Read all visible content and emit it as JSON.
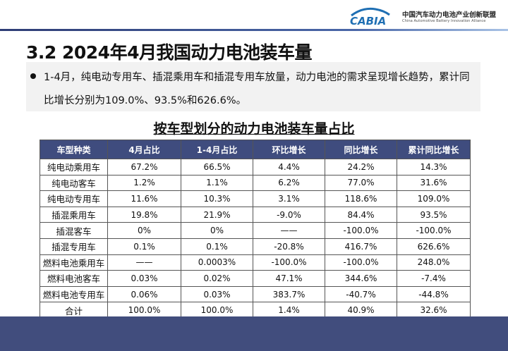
{
  "header": {
    "logo_text": "CABIA",
    "org_name_cn": "中国汽车动力电池产业创新联盟",
    "org_name_en": "China Automotive Battery Innovation Alliance"
  },
  "title": "3.2 2024年4月我国动力电池装车量",
  "bullet": "1-4月，纯电动专用车、插混乘用车和插混专用车放量，动力电池的需求呈现增长趋势，累计同比增长分别为109.0%、93.5%和626.6%。",
  "table": {
    "title": "按车型划分的动力电池装车量占比",
    "headers": [
      "车型种类",
      "4月占比",
      "1-4月占比",
      "环比增长",
      "同比增长",
      "累计同比增长"
    ],
    "rows": [
      [
        "纯电动乘用车",
        "67.2%",
        "66.5%",
        "4.4%",
        "24.2%",
        "14.3%"
      ],
      [
        "纯电动客车",
        "1.2%",
        "1.1%",
        "6.2%",
        "77.0%",
        "31.6%"
      ],
      [
        "纯电动专用车",
        "11.6%",
        "10.3%",
        "3.1%",
        "118.6%",
        "109.0%"
      ],
      [
        "插混乘用车",
        "19.8%",
        "21.9%",
        "-9.0%",
        "84.4%",
        "93.5%"
      ],
      [
        "插混客车",
        "0%",
        "0%",
        "——",
        "-100.0%",
        "-100.0%"
      ],
      [
        "插混专用车",
        "0.1%",
        "0.1%",
        "-20.8%",
        "416.7%",
        "626.6%"
      ],
      [
        "燃料电池乘用车",
        "——",
        "0.0003%",
        "-100.0%",
        "-100.0%",
        "248.0%"
      ],
      [
        "燃料电池客车",
        "0.03%",
        "0.02%",
        "47.1%",
        "344.6%",
        "-7.4%"
      ],
      [
        "燃料电池专用车",
        "0.06%",
        "0.03%",
        "383.7%",
        "-40.7%",
        "-44.8%"
      ],
      [
        "合计",
        "100.0%",
        "100.0%",
        "1.4%",
        "40.9%",
        "32.6%"
      ]
    ]
  },
  "colors": {
    "header_fill": "#3f4c7e",
    "footer": "#414d7d",
    "logo_blue": "#1f6fb3"
  }
}
